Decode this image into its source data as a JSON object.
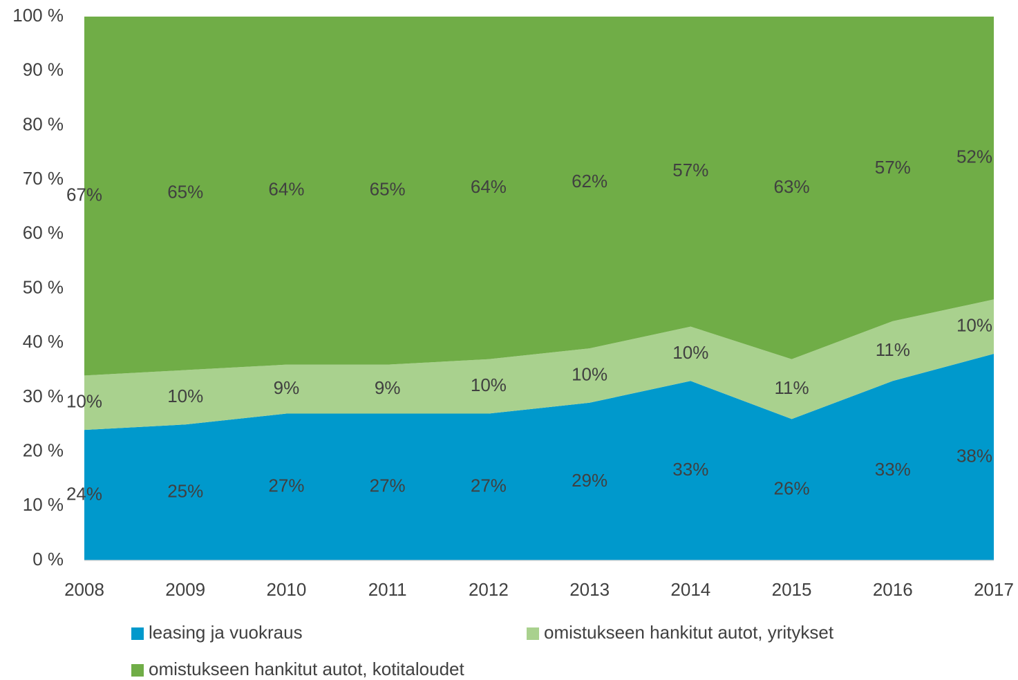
{
  "chart_data": {
    "type": "area",
    "stacked": true,
    "categories": [
      "2008",
      "2009",
      "2010",
      "2011",
      "2012",
      "2013",
      "2014",
      "2015",
      "2016",
      "2017"
    ],
    "series": [
      {
        "name": "leasing ja vuokraus",
        "color": "#0099cc",
        "values": [
          24,
          25,
          27,
          27,
          27,
          29,
          33,
          26,
          33,
          38
        ],
        "value_labels": [
          "24%",
          "25%",
          "27%",
          "27%",
          "27%",
          "29%",
          "33%",
          "26%",
          "33%",
          "38%"
        ]
      },
      {
        "name": "omistukseen hankitut autot, yritykset",
        "color": "#a9d18e",
        "values": [
          10,
          10,
          9,
          9,
          10,
          10,
          10,
          11,
          11,
          10
        ],
        "value_labels": [
          "10%",
          "10%",
          "9%",
          "9%",
          "10%",
          "10%",
          "10%",
          "11%",
          "11%",
          "10%"
        ]
      },
      {
        "name": "omistukseen hankitut autot, kotitaloudet",
        "color": "#70ad47",
        "values": [
          67,
          65,
          64,
          65,
          64,
          62,
          57,
          63,
          57,
          52
        ],
        "value_labels": [
          "67%",
          "65%",
          "64%",
          "65%",
          "64%",
          "62%",
          "57%",
          "63%",
          "57%",
          "52%"
        ]
      }
    ],
    "ylim": [
      0,
      100
    ],
    "yticks": [
      {
        "value": 0,
        "label": "0 %"
      },
      {
        "value": 10,
        "label": "10 %"
      },
      {
        "value": 20,
        "label": "20 %"
      },
      {
        "value": 30,
        "label": "30 %"
      },
      {
        "value": 40,
        "label": "40 %"
      },
      {
        "value": 50,
        "label": "50 %"
      },
      {
        "value": 60,
        "label": "60 %"
      },
      {
        "value": 70,
        "label": "70 %"
      },
      {
        "value": 80,
        "label": "80 %"
      },
      {
        "value": 90,
        "label": "90 %"
      },
      {
        "value": 100,
        "label": "100 %"
      }
    ],
    "legend": "bottom"
  }
}
